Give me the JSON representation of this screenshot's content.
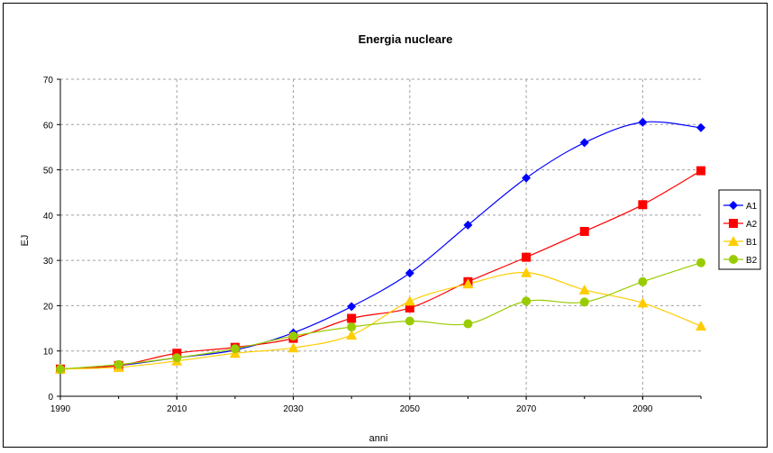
{
  "chart_data": {
    "type": "line",
    "title": "Energia nucleare",
    "xlabel": "anni",
    "ylabel": "EJ",
    "xlim": [
      1990,
      2100
    ],
    "ylim": [
      0,
      70
    ],
    "x_ticks": [
      1990,
      2010,
      2030,
      2050,
      2070,
      2090
    ],
    "y_ticks": [
      0,
      10,
      20,
      30,
      40,
      50,
      60,
      70
    ],
    "grid": true,
    "legend_position": "right",
    "x": [
      1990,
      2000,
      2010,
      2020,
      2030,
      2040,
      2050,
      2060,
      2070,
      2080,
      2090,
      2100
    ],
    "series": [
      {
        "name": "A1",
        "color": "#0000ff",
        "marker": "diamond",
        "values": [
          6,
          6.8,
          8.5,
          10.2,
          14,
          19.8,
          27.2,
          37.8,
          48.2,
          56,
          60.5,
          59.3
        ]
      },
      {
        "name": "A2",
        "color": "#ff0000",
        "marker": "square",
        "values": [
          6,
          6.8,
          9.5,
          10.8,
          12.8,
          17.2,
          19.5,
          25.3,
          30.7,
          36.4,
          42.3,
          49.8
        ]
      },
      {
        "name": "B1",
        "color": "#ffcc00",
        "marker": "triangle",
        "values": [
          6,
          6.4,
          7.8,
          9.5,
          10.7,
          13.5,
          21,
          24.8,
          27.3,
          23.5,
          20.6,
          15.5
        ]
      },
      {
        "name": "B2",
        "color": "#99cc00",
        "marker": "circle",
        "values": [
          6,
          7,
          8.5,
          10.5,
          13.3,
          15.3,
          16.6,
          16,
          21,
          20.8,
          25.3,
          29.5
        ]
      }
    ]
  }
}
